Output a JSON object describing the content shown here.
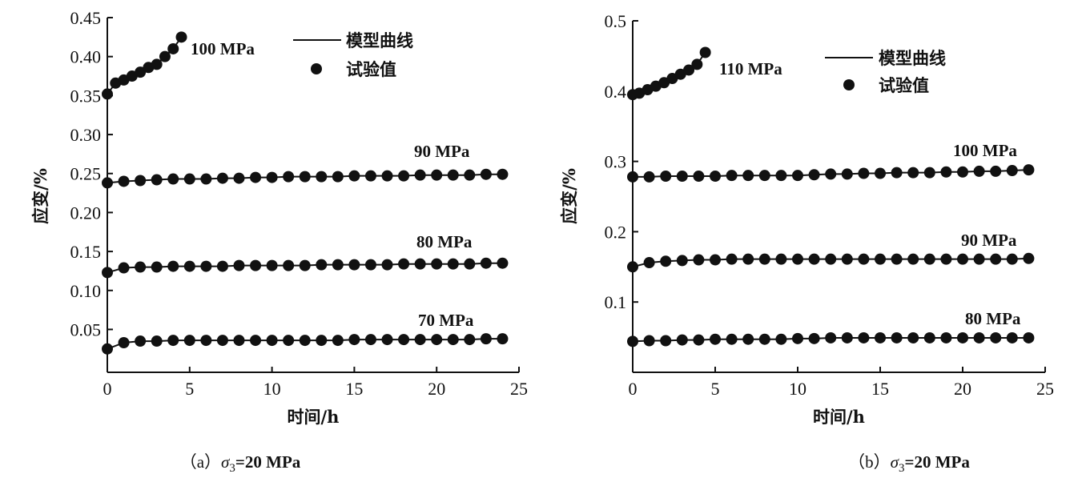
{
  "chart_data": [
    {
      "type": "line",
      "panel": "a",
      "caption_prefix": "（a）",
      "caption_sigma": "σ",
      "caption_sub": "3",
      "caption_rest": "=20 MPa",
      "xlabel": "时间/h",
      "ylabel": "应变/%",
      "xlim": [
        0,
        25
      ],
      "ylim": [
        -0.005,
        0.45
      ],
      "xticks": [
        0,
        5,
        10,
        15,
        20,
        25
      ],
      "xtick_labels": [
        "0",
        "5",
        "10",
        "15",
        "20",
        "25"
      ],
      "yticks": [
        0.05,
        0.1,
        0.15,
        0.2,
        0.25,
        0.3,
        0.35,
        0.4,
        0.45
      ],
      "ytick_labels": [
        "0.05",
        "0.10",
        "0.15",
        "0.20",
        "0.25",
        "0.30",
        "0.35",
        "0.40",
        "0.45"
      ],
      "legend": {
        "line": "模型曲线",
        "marker": "试验值",
        "placement": "top-center"
      },
      "series": [
        {
          "name": "100 MPa",
          "x": [
            0,
            0.5,
            1,
            1.5,
            2,
            2.5,
            3,
            3.5,
            4,
            4.5
          ],
          "y": [
            0.352,
            0.366,
            0.37,
            0.375,
            0.38,
            0.386,
            0.39,
            0.4,
            0.41,
            0.425
          ]
        },
        {
          "name": "90 MPa",
          "x": [
            0,
            1,
            2,
            3,
            4,
            5,
            6,
            7,
            8,
            9,
            10,
            11,
            12,
            13,
            14,
            15,
            16,
            17,
            18,
            19,
            20,
            21,
            22,
            23,
            24
          ],
          "y": [
            0.238,
            0.24,
            0.241,
            0.242,
            0.243,
            0.243,
            0.243,
            0.244,
            0.244,
            0.245,
            0.245,
            0.246,
            0.246,
            0.246,
            0.246,
            0.247,
            0.247,
            0.247,
            0.247,
            0.248,
            0.248,
            0.248,
            0.248,
            0.249,
            0.249
          ]
        },
        {
          "name": "80 MPa",
          "x": [
            0,
            1,
            2,
            3,
            4,
            5,
            6,
            7,
            8,
            9,
            10,
            11,
            12,
            13,
            14,
            15,
            16,
            17,
            18,
            19,
            20,
            21,
            22,
            23,
            24
          ],
          "y": [
            0.123,
            0.129,
            0.13,
            0.13,
            0.131,
            0.131,
            0.131,
            0.131,
            0.132,
            0.132,
            0.132,
            0.132,
            0.132,
            0.133,
            0.133,
            0.133,
            0.133,
            0.133,
            0.134,
            0.134,
            0.134,
            0.134,
            0.134,
            0.135,
            0.135
          ]
        },
        {
          "name": "70 MPa",
          "x": [
            0,
            1,
            2,
            3,
            4,
            5,
            6,
            7,
            8,
            9,
            10,
            11,
            12,
            13,
            14,
            15,
            16,
            17,
            18,
            19,
            20,
            21,
            22,
            23,
            24
          ],
          "y": [
            0.025,
            0.033,
            0.035,
            0.035,
            0.036,
            0.036,
            0.036,
            0.036,
            0.036,
            0.036,
            0.036,
            0.036,
            0.036,
            0.036,
            0.036,
            0.037,
            0.037,
            0.037,
            0.037,
            0.037,
            0.037,
            0.037,
            0.037,
            0.038,
            0.038
          ]
        }
      ]
    },
    {
      "type": "line",
      "panel": "b",
      "caption_prefix": "（b）",
      "caption_sigma": "σ",
      "caption_sub": "3",
      "caption_rest": "=20 MPa",
      "xlabel": "时间/h",
      "ylabel": "应变/%",
      "xlim": [
        0,
        25
      ],
      "ylim": [
        0,
        0.5
      ],
      "xticks": [
        0,
        5,
        10,
        15,
        20,
        25
      ],
      "xtick_labels": [
        "0",
        "5",
        "10",
        "15",
        "20",
        "25"
      ],
      "yticks": [
        0.1,
        0.2,
        0.3,
        0.4,
        0.5
      ],
      "ytick_labels": [
        "0.1",
        "0.2",
        "0.3",
        "0.4",
        "0.5"
      ],
      "legend": {
        "line": "模型曲线",
        "marker": "试验值",
        "placement": "top-center"
      },
      "series": [
        {
          "name": "110 MPa",
          "x": [
            0,
            0.4,
            0.9,
            1.4,
            1.9,
            2.4,
            2.9,
            3.4,
            3.9,
            4.4
          ],
          "y": [
            0.395,
            0.397,
            0.402,
            0.407,
            0.412,
            0.418,
            0.424,
            0.43,
            0.438,
            0.455
          ]
        },
        {
          "name": "100 MPa",
          "x": [
            0,
            1,
            2,
            3,
            4,
            5,
            6,
            7,
            8,
            9,
            10,
            11,
            12,
            13,
            14,
            15,
            16,
            17,
            18,
            19,
            20,
            21,
            22,
            23,
            24
          ],
          "y": [
            0.278,
            0.278,
            0.279,
            0.279,
            0.279,
            0.279,
            0.28,
            0.28,
            0.28,
            0.28,
            0.28,
            0.281,
            0.282,
            0.282,
            0.283,
            0.283,
            0.284,
            0.284,
            0.284,
            0.285,
            0.285,
            0.286,
            0.286,
            0.287,
            0.288
          ]
        },
        {
          "name": "90 MPa",
          "x": [
            0,
            1,
            2,
            3,
            4,
            5,
            6,
            7,
            8,
            9,
            10,
            11,
            12,
            13,
            14,
            15,
            16,
            17,
            18,
            19,
            20,
            21,
            22,
            23,
            24
          ],
          "y": [
            0.15,
            0.156,
            0.158,
            0.159,
            0.16,
            0.16,
            0.161,
            0.161,
            0.161,
            0.161,
            0.161,
            0.161,
            0.161,
            0.161,
            0.161,
            0.161,
            0.161,
            0.161,
            0.161,
            0.161,
            0.161,
            0.161,
            0.161,
            0.161,
            0.162
          ]
        },
        {
          "name": "80 MPa",
          "x": [
            0,
            1,
            2,
            3,
            4,
            5,
            6,
            7,
            8,
            9,
            10,
            11,
            12,
            13,
            14,
            15,
            16,
            17,
            18,
            19,
            20,
            21,
            22,
            23,
            24
          ],
          "y": [
            0.044,
            0.045,
            0.045,
            0.046,
            0.046,
            0.047,
            0.047,
            0.047,
            0.047,
            0.047,
            0.048,
            0.048,
            0.049,
            0.049,
            0.049,
            0.049,
            0.049,
            0.049,
            0.049,
            0.049,
            0.049,
            0.049,
            0.049,
            0.049,
            0.049
          ]
        }
      ]
    }
  ]
}
